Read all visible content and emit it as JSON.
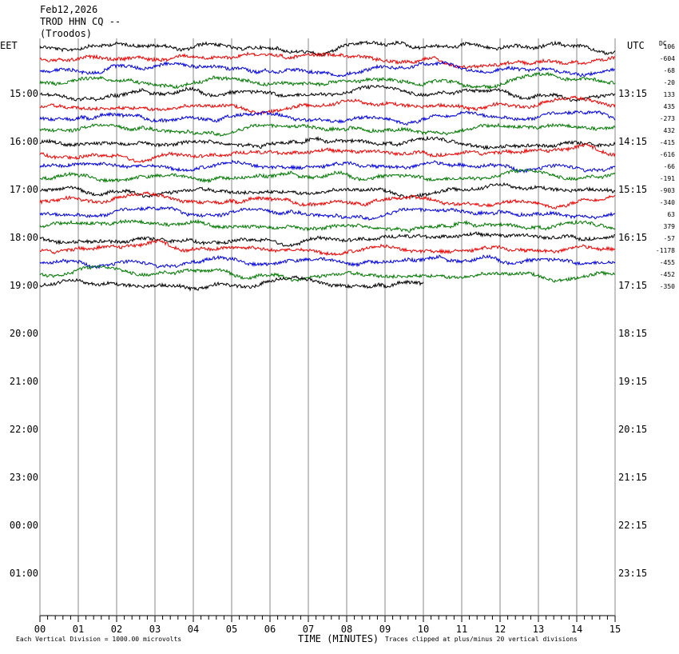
{
  "header": {
    "date": "Feb12,2026",
    "station": "TROD HHN CQ --",
    "location": "(Troodos)"
  },
  "left_axis": {
    "label": "EET",
    "times": [
      "15:00",
      "16:00",
      "17:00",
      "18:00",
      "19:00",
      "20:00",
      "21:00",
      "22:00",
      "23:00",
      "00:00",
      "01:00"
    ]
  },
  "right_axis": {
    "label": "UTC",
    "times": [
      "13:15",
      "14:15",
      "15:15",
      "16:15",
      "17:15",
      "18:15",
      "19:15",
      "20:15",
      "21:15",
      "22:15",
      "23:15"
    ]
  },
  "dc": {
    "label": "DC",
    "values": [
      106,
      -604,
      -68,
      -20,
      133,
      435,
      -273,
      432,
      -415,
      -616,
      -66,
      -191,
      -903,
      -340,
      63,
      379,
      -57,
      -1178,
      -455,
      -452,
      -350
    ]
  },
  "x_axis": {
    "ticks": [
      "00",
      "01",
      "02",
      "03",
      "04",
      "05",
      "06",
      "07",
      "08",
      "09",
      "10",
      "11",
      "12",
      "13",
      "14",
      "15"
    ],
    "title": "TIME (MINUTES)"
  },
  "footer": {
    "scale": "Each Vertical Division = 1000.00 microvolts",
    "clip": "Traces clipped at plus/minus 20 vertical divisions"
  }
}
